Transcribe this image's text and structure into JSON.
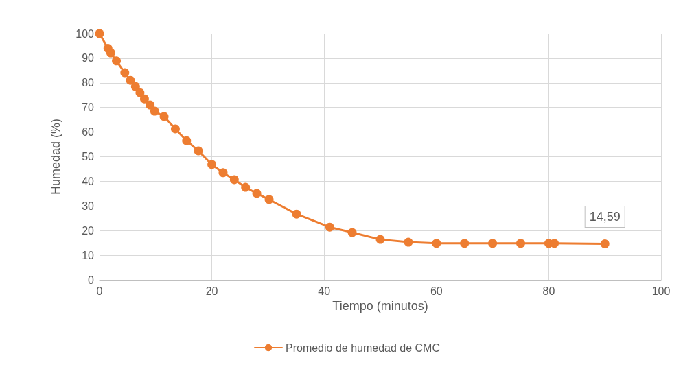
{
  "chart_data": {
    "type": "line",
    "xlabel": "Tiempo (minutos)",
    "ylabel": "Humedad (%)",
    "x": [
      0,
      1.5,
      2,
      3,
      4.5,
      5.5,
      6.4,
      7.2,
      8,
      9,
      9.8,
      11.5,
      13.5,
      15.5,
      17.6,
      20,
      22,
      24,
      26,
      28,
      30.2,
      35.1,
      41,
      45,
      50,
      55,
      60,
      65,
      70,
      75,
      80,
      81,
      90
    ],
    "series": [
      {
        "name": "Promedio de humedad de CMC",
        "color": "#ed7d31",
        "values": [
          100,
          94,
          92.2,
          88.9,
          84.1,
          81,
          78.5,
          76,
          73.5,
          71,
          68.5,
          66.3,
          61.3,
          56.5,
          52.4,
          46.8,
          43.5,
          40.7,
          37.6,
          35.1,
          32.6,
          26.7,
          21.4,
          19.2,
          16.4,
          15.3,
          14.8,
          14.8,
          14.8,
          14.8,
          14.8,
          14.8,
          14.59
        ],
        "value_labels": [
          null,
          null,
          null,
          null,
          null,
          null,
          null,
          null,
          null,
          null,
          null,
          null,
          null,
          null,
          null,
          null,
          null,
          null,
          null,
          null,
          null,
          null,
          null,
          null,
          null,
          null,
          null,
          null,
          null,
          null,
          null,
          null,
          "14,59"
        ]
      }
    ],
    "xlim": [
      0,
      100
    ],
    "xticks": [
      0,
      20,
      40,
      60,
      80,
      100
    ],
    "ylim": [
      0,
      100
    ],
    "yticks": [
      0,
      10,
      20,
      30,
      40,
      50,
      60,
      70,
      80,
      90,
      100
    ],
    "grid": true,
    "legend": "bottom",
    "marker": "circle",
    "line_style": "solid"
  }
}
